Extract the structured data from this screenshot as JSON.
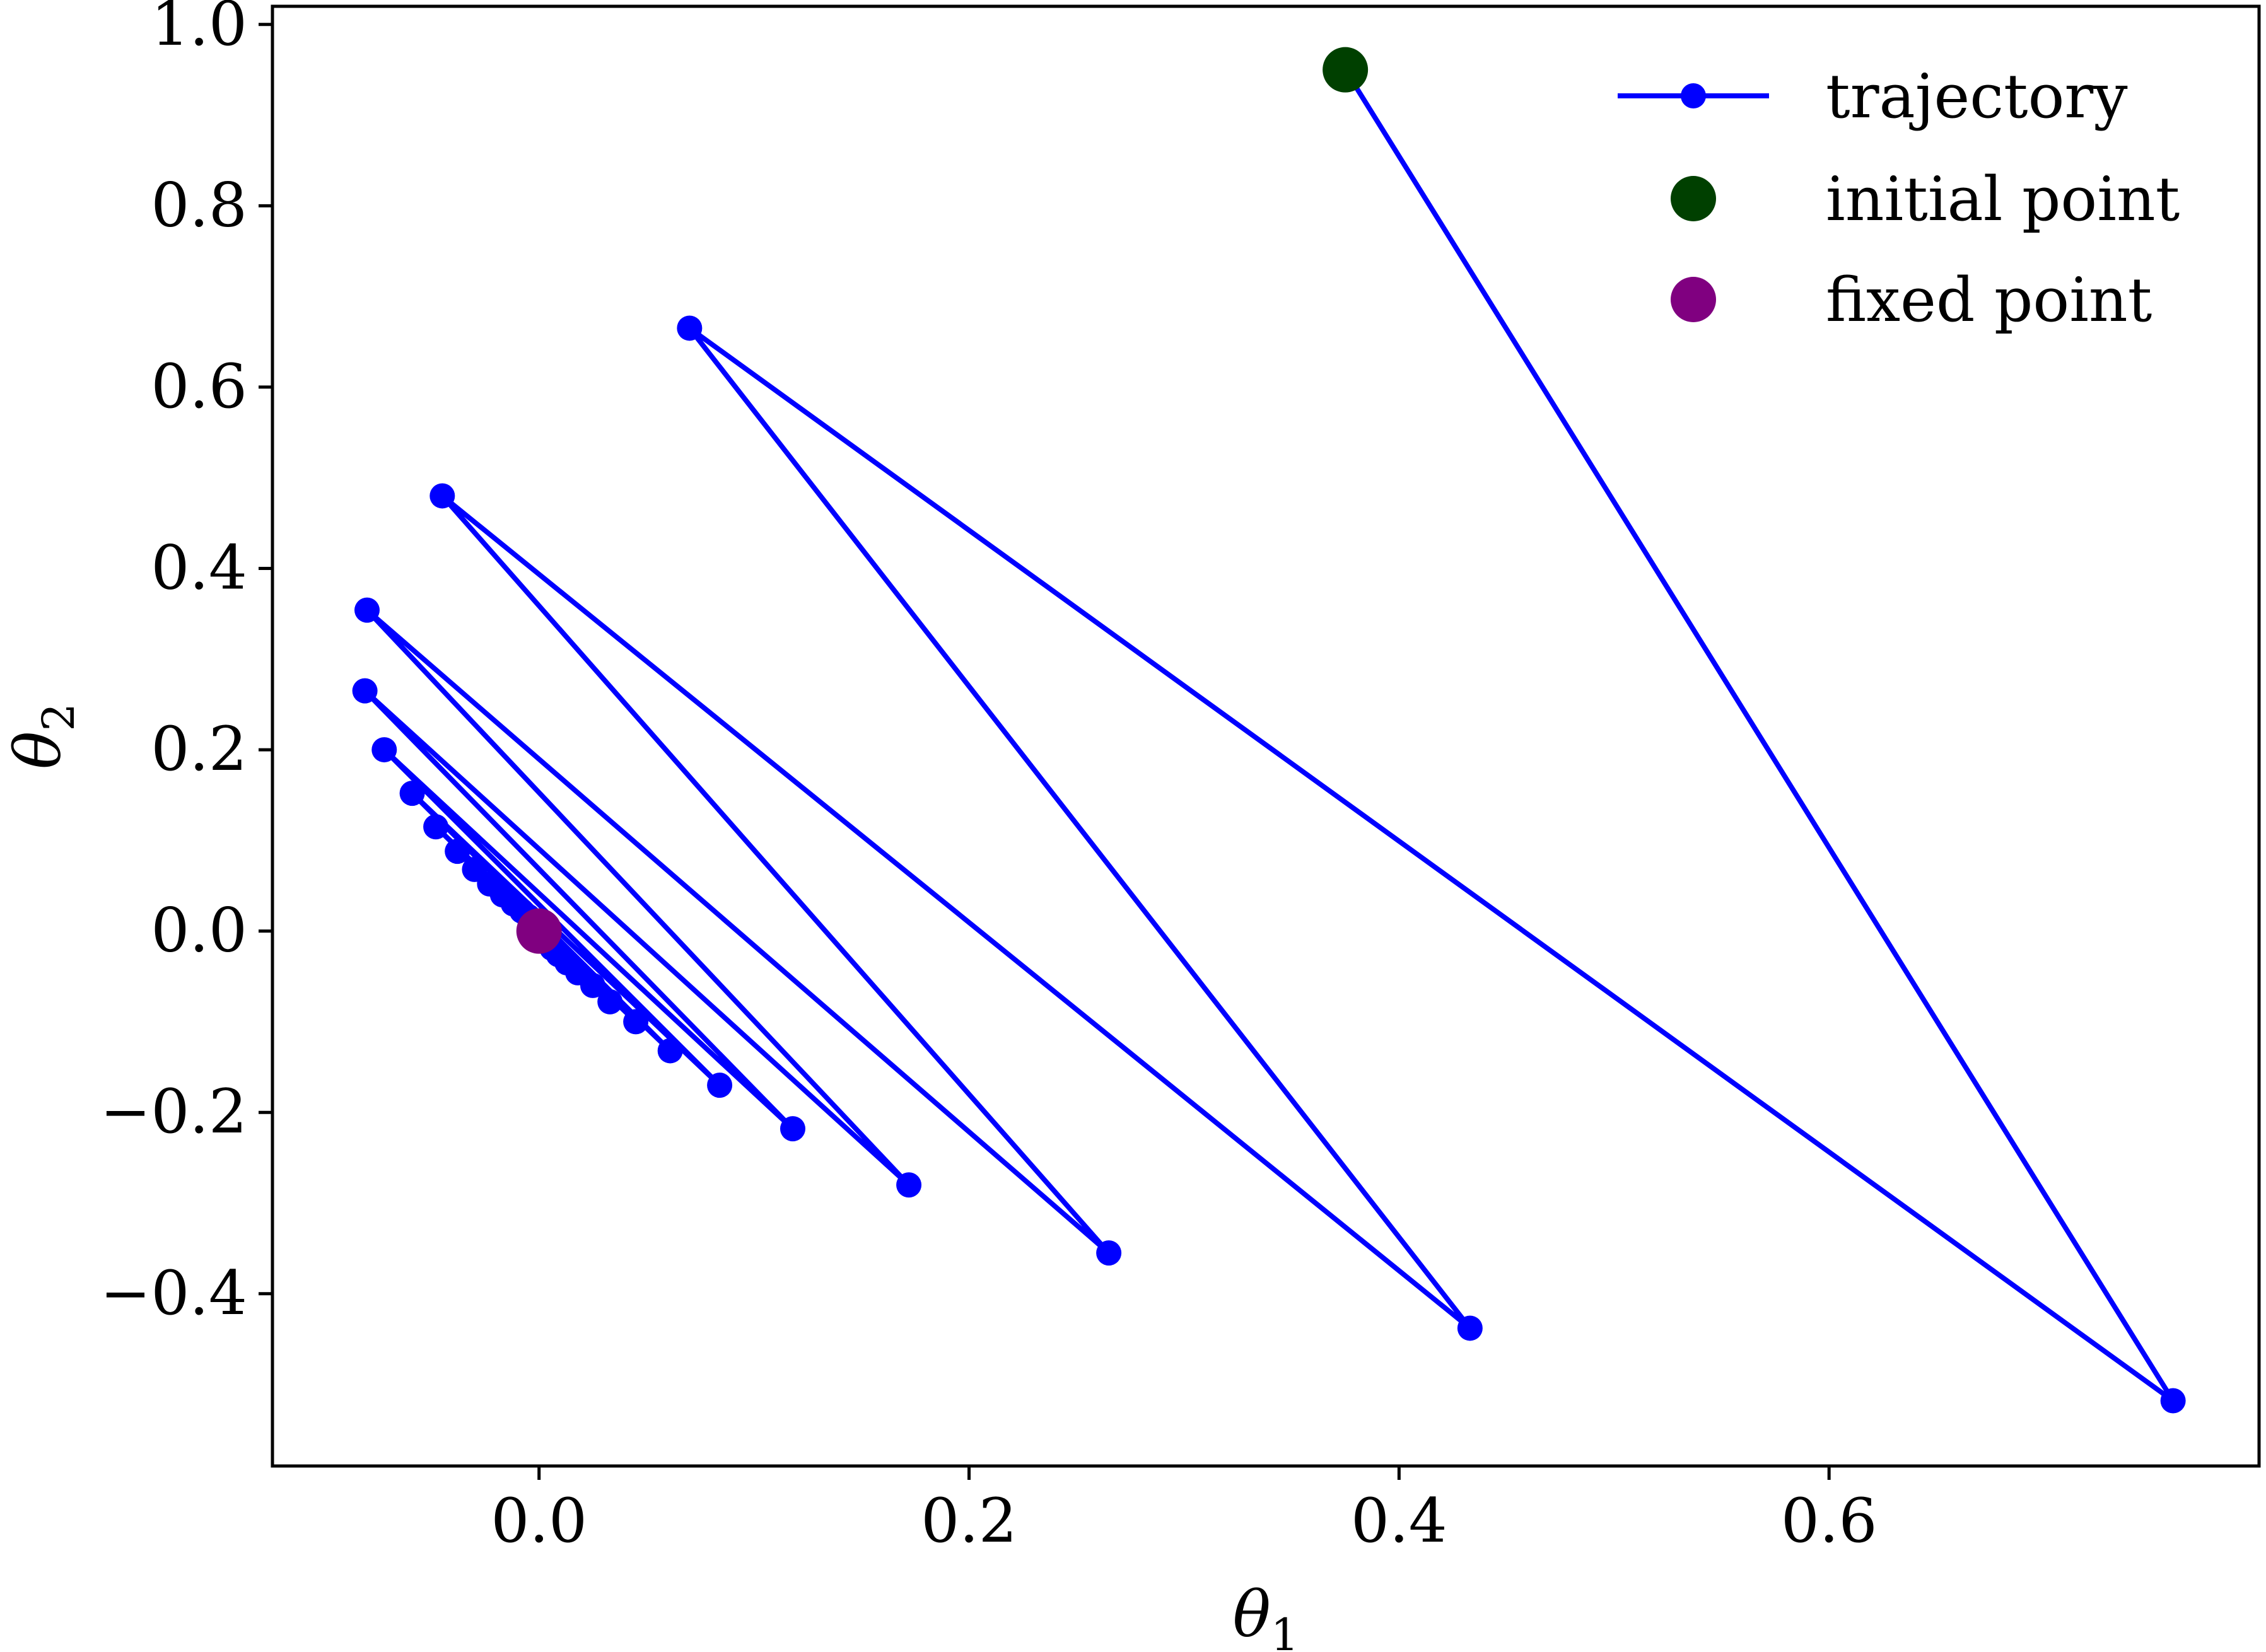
{
  "chart_data": {
    "type": "line",
    "xlabel": "θ",
    "xlabel_sub": "1",
    "ylabel": "θ",
    "ylabel_sub": "2",
    "xlim": [
      -0.124,
      0.8
    ],
    "ylim": [
      -0.59,
      1.02
    ],
    "xticks": [
      0.0,
      0.2,
      0.4,
      0.6
    ],
    "xtick_labels": [
      "0.0",
      "0.2",
      "0.4",
      "0.6"
    ],
    "yticks": [
      -0.4,
      -0.2,
      0.0,
      0.2,
      0.4,
      0.6,
      0.8,
      1.0
    ],
    "ytick_labels": [
      "−0.4",
      "−0.2",
      "0.0",
      "0.2",
      "0.4",
      "0.6",
      "0.8",
      "1.0"
    ],
    "grid": false,
    "legend_position": "top-right",
    "colors": {
      "trajectory": "#0000ff",
      "initial_point": "#004000",
      "fixed_point": "#800080"
    },
    "series": [
      {
        "name": "trajectory",
        "x": [
          0.375,
          0.76,
          0.07,
          0.433,
          -0.045,
          0.265,
          -0.08,
          0.172,
          -0.081,
          0.118,
          -0.072,
          0.084,
          -0.059,
          0.061,
          -0.048,
          0.045,
          -0.038,
          0.033,
          -0.03,
          0.025,
          -0.023,
          0.018,
          -0.017,
          0.013,
          -0.012,
          0.009,
          -0.008,
          0.006,
          -0.005,
          0.004,
          -0.003,
          0.002
        ],
        "y": [
          0.95,
          -0.518,
          0.665,
          -0.438,
          0.48,
          -0.355,
          0.354,
          -0.28,
          0.265,
          -0.218,
          0.2,
          -0.17,
          0.152,
          -0.132,
          0.115,
          -0.1,
          0.088,
          -0.078,
          0.068,
          -0.06,
          0.052,
          -0.046,
          0.04,
          -0.035,
          0.03,
          -0.026,
          0.022,
          -0.019,
          0.016,
          -0.013,
          0.011,
          -0.009
        ]
      },
      {
        "name": "initial point",
        "x": [
          0.375
        ],
        "y": [
          0.95
        ]
      },
      {
        "name": "fixed point",
        "x": [
          0.0
        ],
        "y": [
          0.0
        ]
      }
    ]
  }
}
